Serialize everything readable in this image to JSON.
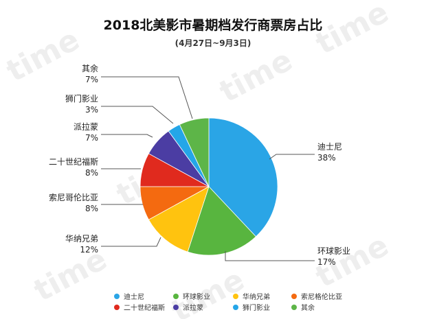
{
  "colors": {
    "disney": "#2aa5e6",
    "universal": "#58b53f",
    "warner": "#ffc30f",
    "sony": "#f46a10",
    "fox": "#e02a1e",
    "paramount": "#4b3da3",
    "lionsgate": "#24a6e8",
    "others": "#5db548",
    "leader": "#555555",
    "watermark": "#eeeeee"
  },
  "watermark_text": "time",
  "chart_data": {
    "type": "pie",
    "title": "2018北美影市暑期档发行商票房占比",
    "subtitle": "(4月27日~9月3日)",
    "slices": [
      {
        "key": "disney",
        "label": "迪士尼",
        "pct_label": "38%",
        "value": 38
      },
      {
        "key": "universal",
        "label": "环球影业",
        "pct_label": "17%",
        "value": 17
      },
      {
        "key": "warner",
        "label": "华纳兄弟",
        "pct_label": "12%",
        "value": 12
      },
      {
        "key": "sony",
        "label": "索尼哥伦比亚",
        "pct_label": "8%",
        "value": 8
      },
      {
        "key": "fox",
        "label": "二十世纪福斯",
        "pct_label": "8%",
        "value": 8
      },
      {
        "key": "paramount",
        "label": "派拉蒙",
        "pct_label": "7%",
        "value": 7
      },
      {
        "key": "lionsgate",
        "label": "狮门影业",
        "pct_label": "3%",
        "value": 3
      },
      {
        "key": "others",
        "label": "其余",
        "pct_label": "7%",
        "value": 7
      }
    ],
    "legend": {
      "placement": "bottom",
      "items": [
        {
          "key": "disney",
          "label": "迪士尼"
        },
        {
          "key": "universal",
          "label": "环球影业"
        },
        {
          "key": "warner",
          "label": "华纳兄弟"
        },
        {
          "key": "sony",
          "label": "索尼格伦比亚"
        },
        {
          "key": "fox",
          "label": "二十世纪福斯"
        },
        {
          "key": "paramount",
          "label": "派拉蒙"
        },
        {
          "key": "lionsgate",
          "label": "狮门影业"
        },
        {
          "key": "others",
          "label": "其余"
        }
      ]
    }
  }
}
